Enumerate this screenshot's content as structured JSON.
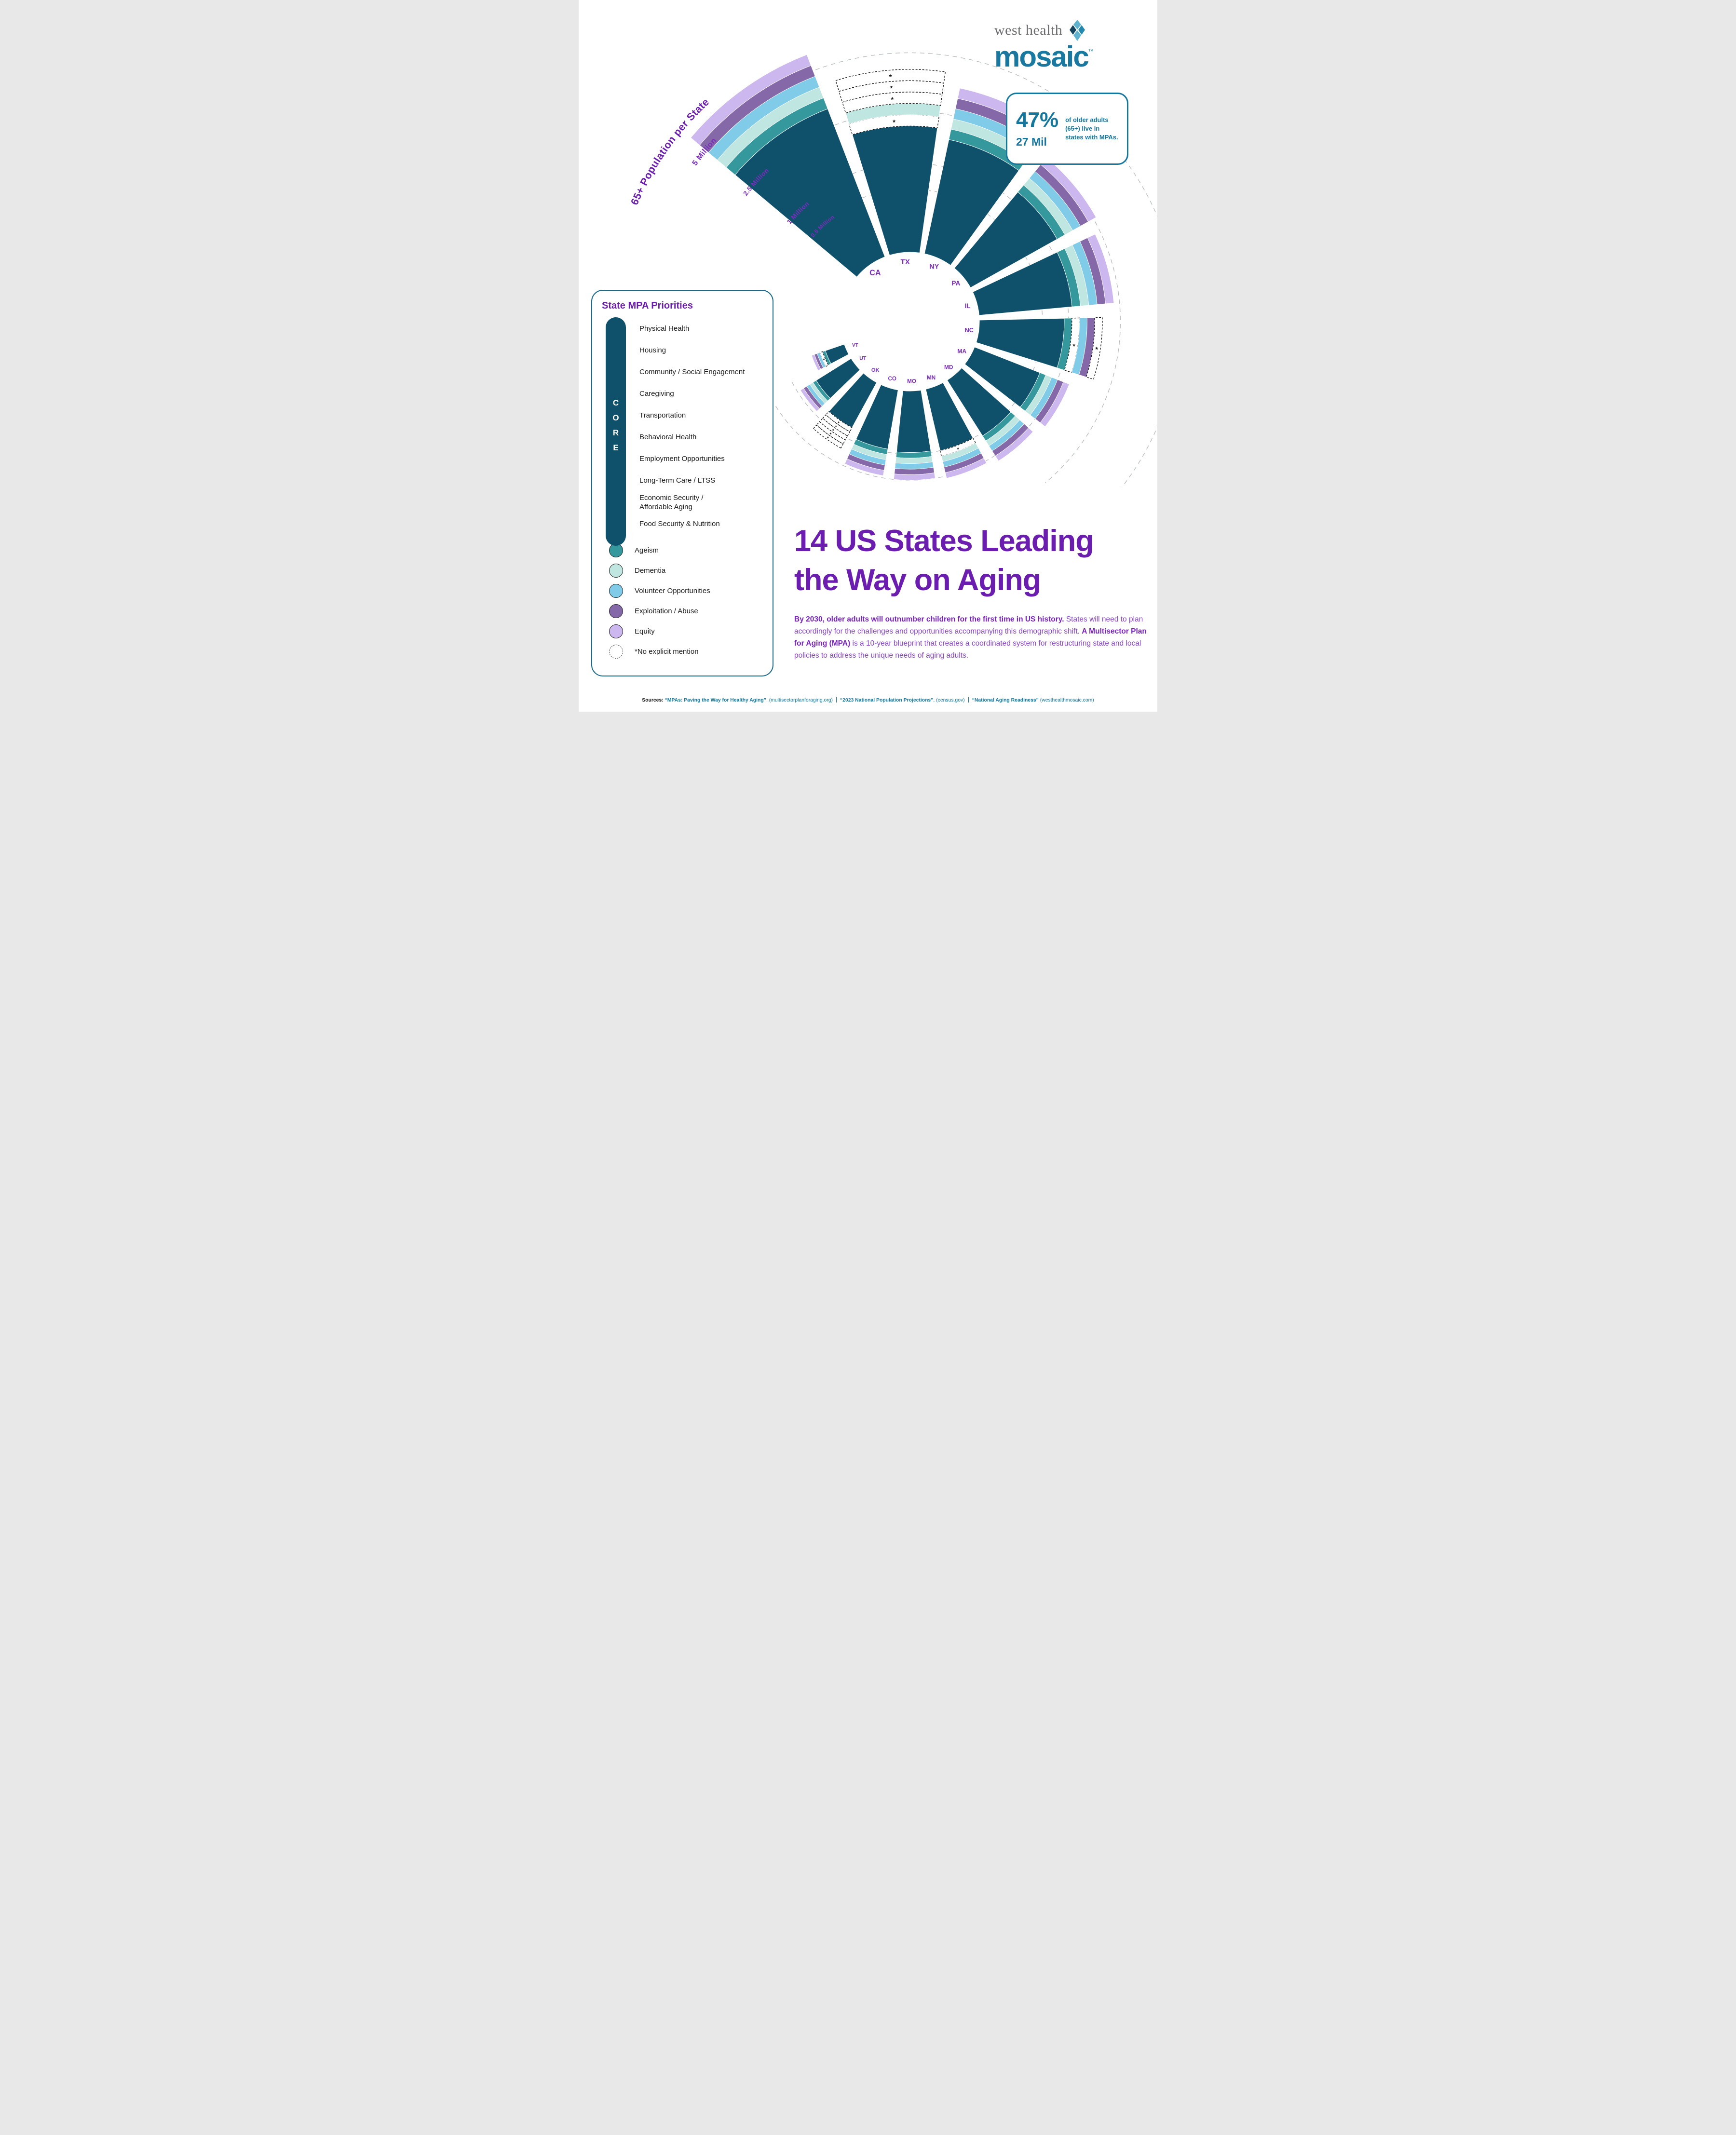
{
  "logo": {
    "line1": "west health",
    "word": "mosaic",
    "tm": "™"
  },
  "stat_box": {
    "percent": "47%",
    "count": "27 Mil",
    "description": "of older adults (65+) live in states with MPAs."
  },
  "chart_data": {
    "type": "radial_bar",
    "title": "65+ Population per State",
    "axis": {
      "gridlines": [
        {
          "label": "5 Million",
          "value": 5
        },
        {
          "label": "2.5 Million",
          "value": 2.5
        },
        {
          "label": "1 Million",
          "value": 1
        },
        {
          "label": "0.5 Million",
          "value": 0.5
        }
      ]
    },
    "ring_order": [
      "Ageism",
      "Dementia",
      "Volunteer Opportunities",
      "Exploitation / Abuse",
      "Equity"
    ],
    "no_mention_symbol": "*",
    "colors": {
      "core": "#0f506b",
      "rings": [
        "#35989c",
        "#bfe6e0",
        "#7fcbe8",
        "#8468a8",
        "#ccb7ee"
      ],
      "grid": "#b9bcc0",
      "state_label": "#7b2cbe",
      "axis_label": "#7b2cbe",
      "axis_title": "#6b1daf",
      "no_mention_stroke": "#141414"
    },
    "states": [
      {
        "code": "CA",
        "population_millions": 5.9,
        "present": [
          true,
          true,
          true,
          true,
          true
        ]
      },
      {
        "code": "TX",
        "population_millions": 4.2,
        "present": [
          false,
          true,
          false,
          false,
          false
        ]
      },
      {
        "code": "NY",
        "population_millions": 3.6,
        "present": [
          true,
          true,
          true,
          true,
          true
        ]
      },
      {
        "code": "PA",
        "population_millions": 2.6,
        "present": [
          true,
          true,
          true,
          true,
          true
        ]
      },
      {
        "code": "IL",
        "population_millions": 2.3,
        "present": [
          true,
          true,
          true,
          true,
          true
        ]
      },
      {
        "code": "NC",
        "population_millions": 1.9,
        "present": [
          true,
          false,
          true,
          true,
          false
        ]
      },
      {
        "code": "MA",
        "population_millions": 1.3,
        "present": [
          true,
          true,
          true,
          true,
          true
        ]
      },
      {
        "code": "MD",
        "population_millions": 1.15,
        "present": [
          true,
          true,
          true,
          true,
          true
        ]
      },
      {
        "code": "MN",
        "population_millions": 1.05,
        "present": [
          false,
          true,
          true,
          true,
          true
        ]
      },
      {
        "code": "MO",
        "population_millions": 1.0,
        "present": [
          true,
          true,
          true,
          true,
          true
        ]
      },
      {
        "code": "CO",
        "population_millions": 0.95,
        "present": [
          true,
          true,
          true,
          true,
          true
        ]
      },
      {
        "code": "OK",
        "population_millions": 0.7,
        "present": [
          false,
          false,
          false,
          false,
          false
        ]
      },
      {
        "code": "UT",
        "population_millions": 0.45,
        "present": [
          true,
          true,
          true,
          true,
          true
        ]
      },
      {
        "code": "VT",
        "population_millions": 0.15,
        "present": [
          true,
          false,
          true,
          true,
          true
        ]
      }
    ]
  },
  "legend": {
    "title": "State MPA Priorities",
    "core_label": "CORE",
    "core_items": [
      "Physical Health",
      "Housing",
      "Community / Social Engagement",
      "Caregiving",
      "Transportation",
      "Behavioral Health",
      "Employment Opportunities",
      "Long-Term Care / LTSS",
      "Economic Security /\nAffordable Aging",
      "Food Security & Nutrition"
    ],
    "category_items": [
      {
        "label": "Ageism",
        "color": "#35989c"
      },
      {
        "label": "Dementia",
        "color": "#bfe6e0"
      },
      {
        "label": "Volunteer Opportunities",
        "color": "#7fcbe8"
      },
      {
        "label": "Exploitation / Abuse",
        "color": "#8468a8"
      },
      {
        "label": "Equity",
        "color": "#ccb7ee"
      }
    ],
    "no_mention_label": "*No explicit mention"
  },
  "headline": {
    "line1": "14 US States Leading",
    "line2": "the Way on Aging"
  },
  "paragraph": {
    "segments": [
      {
        "text": "By 2030, older adults will outnumber children for the first time in US history. ",
        "bold": true
      },
      {
        "text": "States will need to plan accordingly for the challenges and opportunities accompanying this demographic shift. ",
        "bold": false
      },
      {
        "text": "A Multisector Plan for Aging (MPA)",
        "bold": true
      },
      {
        "text": " is a 10-year blueprint that creates a coordinated system for restructuring state and local policies to address the unique needs of aging adults.",
        "bold": false
      }
    ]
  },
  "sources": {
    "label": "Sources:",
    "items": [
      {
        "title": "“MPAs: Paving the Way for Healthy Aging”",
        "rest": ", (multisectorplanforaging.org)"
      },
      {
        "title": "“2023 National Population Projections”",
        "rest": ", (census.gov)"
      },
      {
        "title": "“National Aging Readiness”",
        "rest": " (westhealthmosaic.com)"
      }
    ]
  }
}
